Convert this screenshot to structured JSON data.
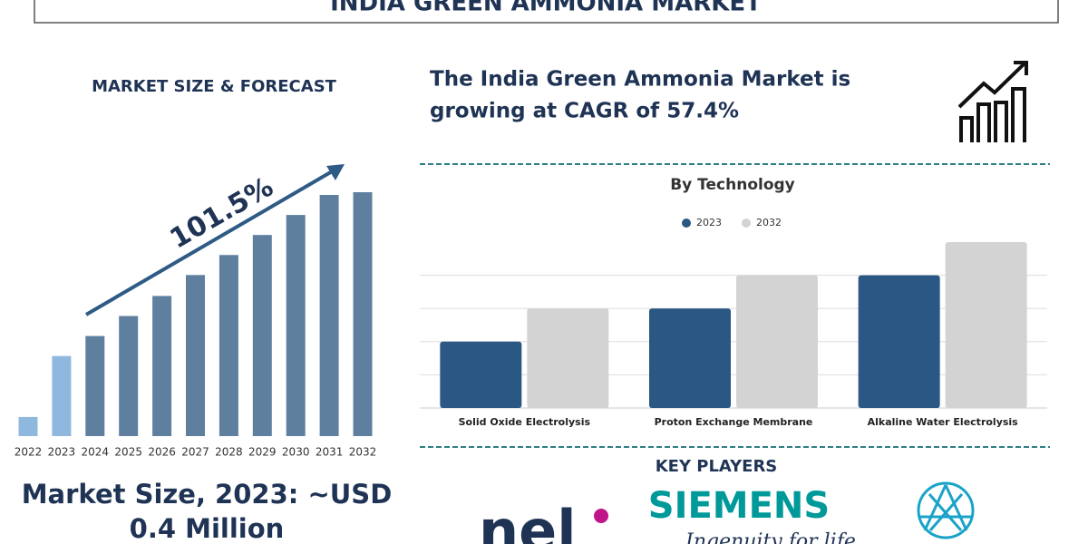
{
  "header": {
    "title": "INDIA GREEN AMMONIA MARKET"
  },
  "left_panel": {
    "heading": "MARKET SIZE & FORECAST",
    "growth_label": "101.5%",
    "market_size_lines": [
      "Market Size, 2023: ~USD",
      "0.4 Million"
    ]
  },
  "right_panel": {
    "headline_lines": [
      "The India Green Ammonia Market is",
      "growing at CAGR of 57.4%"
    ],
    "key_players_heading": "KEY PLAYERS",
    "logos": {
      "nel": "nel",
      "siemens": "SIEMENS",
      "siemens_tagline": "Ingenuity for life"
    }
  },
  "chart_data": [
    {
      "type": "bar",
      "categories": [
        "2022",
        "2023",
        "2024",
        "2025",
        "2026",
        "2027",
        "2028",
        "2029",
        "2030",
        "2031",
        "2032"
      ],
      "values": [
        21,
        88,
        110,
        132,
        154,
        177,
        199,
        221,
        243,
        265,
        268
      ],
      "colors": [
        "#8fb8de",
        "#8fb8de",
        "#5f7f9f",
        "#5f7f9f",
        "#5f7f9f",
        "#5f7f9f",
        "#5f7f9f",
        "#5f7f9f",
        "#5f7f9f",
        "#5f7f9f",
        "#5f7f9f"
      ],
      "ylim": [
        0,
        268
      ]
    },
    {
      "type": "grouped-bar",
      "title": "By Technology",
      "categories": [
        "Solid Oxide Electrolysis",
        "Proton Exchange Membrane",
        "Alkaline Water Electrolysis"
      ],
      "series": [
        {
          "name": "2023",
          "color": "#2a5783",
          "values": [
            2,
            3,
            4
          ]
        },
        {
          "name": "2032",
          "color": "#d3d3d3",
          "values": [
            3,
            4,
            5
          ]
        }
      ],
      "ylim": [
        0,
        5
      ],
      "yticks": [
        1,
        2,
        3,
        4
      ],
      "grid": true
    }
  ]
}
